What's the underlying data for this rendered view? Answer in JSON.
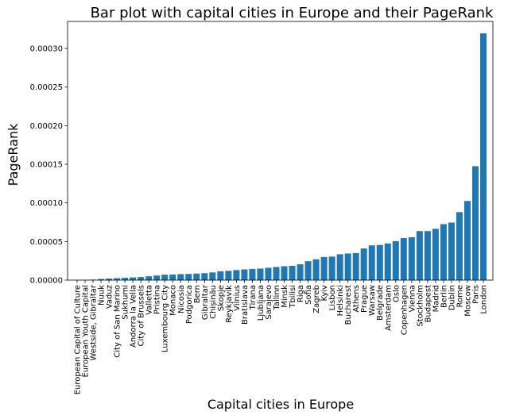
{
  "chart_data": {
    "type": "bar",
    "title": "Bar plot with capital cities in Europe and their PageRank",
    "xlabel": "Capital cities in Europe",
    "ylabel": "PageRank",
    "ylim": [
      0,
      0.000335
    ],
    "yticks": [
      0,
      5e-05,
      0.0001,
      0.00015,
      0.0002,
      0.00025,
      0.0003
    ],
    "ytick_labels": [
      "0.00000",
      "0.00005",
      "0.00010",
      "0.00015",
      "0.00020",
      "0.00025",
      "0.00030"
    ],
    "bar_color": "#1f77b4",
    "grid": false,
    "categories": [
      "European Capital of Culture",
      "European Youth Capital",
      "Westside, Gibraltar",
      "Nuuk",
      "Vaduz",
      "City of San Marino",
      "Sukhumi",
      "Andorra la Vella",
      "City of Brussels",
      "Valletta",
      "Pristina",
      "Luxembourg City",
      "Monaco",
      "Nicosia",
      "Podgorica",
      "Bern",
      "Gibraltar",
      "Chișinău",
      "Skopje",
      "Reykjavík",
      "Vilnius",
      "Bratislava",
      "Tirana",
      "Ljubljana",
      "Sarajevo",
      "Tallinn",
      "Minsk",
      "Tbilisi",
      "Riga",
      "Sofia",
      "Zagreb",
      "Kyiv",
      "Lisbon",
      "Helsinki",
      "Bucharest",
      "Athens",
      "Prague",
      "Warsaw",
      "Belgrade",
      "Amsterdam",
      "Oslo",
      "Copenhagen",
      "Vienna",
      "Stockholm",
      "Budapest",
      "Madrid",
      "Berlin",
      "Dublin",
      "Rome",
      "Moscow",
      "Paris",
      "London"
    ],
    "values": [
      3e-07,
      5e-07,
      7e-07,
      1.5e-06,
      2e-06,
      2.5e-06,
      3e-06,
      3.5e-06,
      4e-06,
      5e-06,
      6e-06,
      7e-06,
      7.2e-06,
      7.8e-06,
      8e-06,
      8.5e-06,
      9e-06,
      1e-05,
      1.15e-05,
      1.2e-05,
      1.3e-05,
      1.38e-05,
      1.45e-05,
      1.5e-05,
      1.6e-05,
      1.7e-05,
      1.8e-05,
      1.85e-05,
      2.05e-05,
      2.45e-05,
      2.7e-05,
      3e-05,
      3.05e-05,
      3.35e-05,
      3.45e-05,
      3.5e-05,
      4.1e-05,
      4.5e-05,
      4.55e-05,
      4.75e-05,
      5.05e-05,
      5.45e-05,
      5.55e-05,
      6.35e-05,
      6.35e-05,
      6.65e-05,
      7.25e-05,
      7.45e-05,
      8.8e-05,
      0.0001025,
      0.0001475,
      0.0003195
    ]
  }
}
